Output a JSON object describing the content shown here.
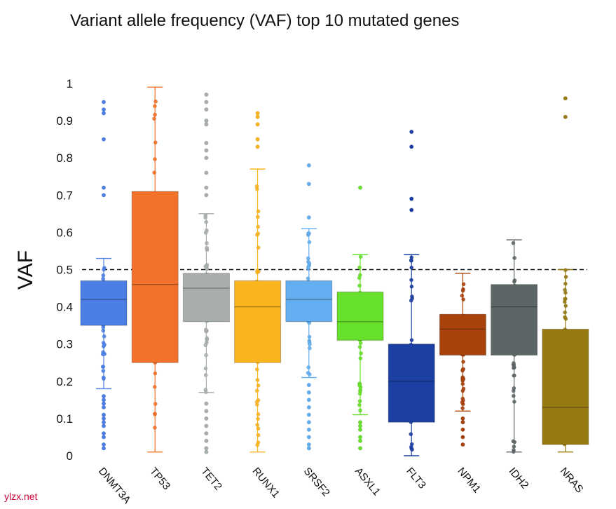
{
  "chart_data": {
    "type": "box",
    "title": "Variant allele frequency (VAF) top 10 mutated genes",
    "xlabel": "",
    "ylabel": "VAF",
    "ylim": [
      0,
      1
    ],
    "yticks": [
      "0",
      "0.1",
      "0.2",
      "0.3",
      "0.4",
      "0.5",
      "0.6",
      "0.7",
      "0.8",
      "0.9",
      "1"
    ],
    "reference_line": 0.5,
    "grid": false,
    "categories": [
      "DNMT3A",
      "TP53",
      "TET2",
      "RUNX1",
      "SRSF2",
      "ASXL1",
      "FLT3",
      "NPM1",
      "IDH2",
      "NRAS"
    ],
    "series": [
      {
        "name": "DNMT3A",
        "color": "#4c7fe6",
        "whisker_low": 0.18,
        "q1": 0.35,
        "median": 0.42,
        "q3": 0.47,
        "whisker_high": 0.53,
        "outliers": [
          0.02,
          0.03,
          0.05,
          0.06,
          0.08,
          0.09,
          0.1,
          0.11,
          0.13,
          0.14,
          0.15,
          0.16,
          0.7,
          0.72,
          0.85,
          0.92,
          0.93,
          0.95
        ]
      },
      {
        "name": "TP53",
        "color": "#f2722b",
        "whisker_low": 0.01,
        "q1": 0.25,
        "median": 0.46,
        "q3": 0.71,
        "whisker_high": 0.99,
        "outliers": []
      },
      {
        "name": "TET2",
        "color": "#a8aeae",
        "whisker_low": 0.17,
        "q1": 0.36,
        "median": 0.45,
        "q3": 0.49,
        "whisker_high": 0.65,
        "outliers": [
          0.01,
          0.02,
          0.04,
          0.06,
          0.08,
          0.1,
          0.12,
          0.14,
          0.7,
          0.72,
          0.76,
          0.8,
          0.82,
          0.84,
          0.89,
          0.9,
          0.93,
          0.95,
          0.97
        ]
      },
      {
        "name": "RUNX1",
        "color": "#fab51e",
        "whisker_low": 0.01,
        "q1": 0.25,
        "median": 0.4,
        "q3": 0.47,
        "whisker_high": 0.77,
        "outliers": [
          0.83,
          0.85,
          0.89,
          0.91,
          0.92
        ]
      },
      {
        "name": "SRSF2",
        "color": "#62aef0",
        "whisker_low": 0.21,
        "q1": 0.36,
        "median": 0.42,
        "q3": 0.47,
        "whisker_high": 0.61,
        "outliers": [
          0.02,
          0.03,
          0.05,
          0.07,
          0.09,
          0.11,
          0.13,
          0.15,
          0.17,
          0.19,
          0.64,
          0.73,
          0.78
        ]
      },
      {
        "name": "ASXL1",
        "color": "#66e02a",
        "whisker_low": 0.11,
        "q1": 0.31,
        "median": 0.36,
        "q3": 0.44,
        "whisker_high": 0.54,
        "outliers": [
          0.02,
          0.04,
          0.05,
          0.07,
          0.08,
          0.09,
          0.72
        ]
      },
      {
        "name": "FLT3",
        "color": "#1c3fa3",
        "whisker_low": 0.0,
        "q1": 0.09,
        "median": 0.2,
        "q3": 0.3,
        "whisker_high": 0.54,
        "outliers": [
          0.66,
          0.69,
          0.83,
          0.87
        ]
      },
      {
        "name": "NPM1",
        "color": "#a8420c",
        "whisker_low": 0.12,
        "q1": 0.27,
        "median": 0.34,
        "q3": 0.38,
        "whisker_high": 0.49,
        "outliers": [
          0.03,
          0.05,
          0.07,
          0.09,
          0.1
        ]
      },
      {
        "name": "IDH2",
        "color": "#5d6667",
        "whisker_low": 0.01,
        "q1": 0.27,
        "median": 0.4,
        "q3": 0.46,
        "whisker_high": 0.58,
        "outliers": []
      },
      {
        "name": "NRAS",
        "color": "#987a12",
        "whisker_low": 0.01,
        "q1": 0.03,
        "median": 0.13,
        "q3": 0.34,
        "whisker_high": 0.5,
        "outliers": [
          0.91,
          0.96
        ]
      }
    ]
  },
  "watermark": "ylzx.net"
}
